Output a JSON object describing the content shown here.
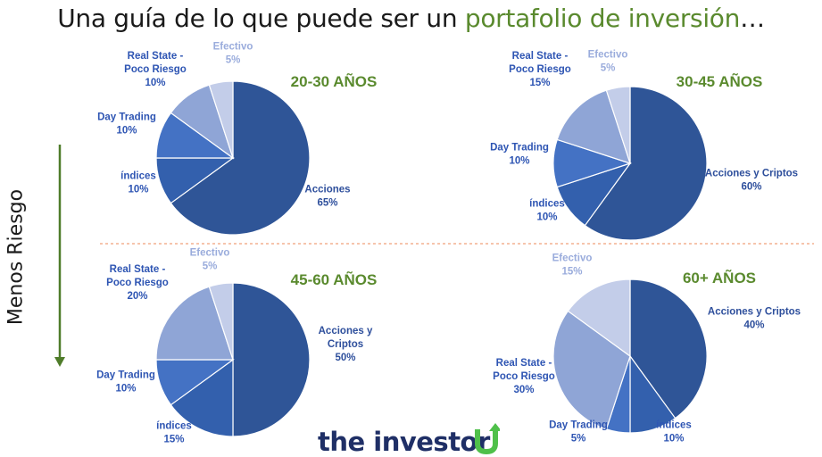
{
  "title": {
    "main": "Una guía de lo que puede ser un ",
    "accent": "portafolio de inversión",
    "suffix": "…"
  },
  "side_label": "Menos Riesgo",
  "brand": {
    "text": "the investor",
    "mark": "U-arrow-logo"
  },
  "colors": {
    "accent_green": "#5a8a2e",
    "label_blue": "#2e55b3",
    "divider": "#f0a07a"
  },
  "chart_data": [
    {
      "type": "pie",
      "title": "20-30 AÑOS",
      "slices": [
        {
          "label": "Acciones",
          "value": 65,
          "display": "65%"
        },
        {
          "label": "índices",
          "value": 10,
          "display": "10%"
        },
        {
          "label": "Day Trading",
          "value": 10,
          "display": "10%"
        },
        {
          "label": "Real State - Poco Riesgo",
          "value": 10,
          "display": "10%"
        },
        {
          "label": "Efectivo",
          "value": 5,
          "display": "5%"
        }
      ]
    },
    {
      "type": "pie",
      "title": "30-45 AÑOS",
      "slices": [
        {
          "label": "Acciones y Criptos",
          "value": 60,
          "display": "60%"
        },
        {
          "label": "índices",
          "value": 10,
          "display": "10%"
        },
        {
          "label": "Day Trading",
          "value": 10,
          "display": "10%"
        },
        {
          "label": "Real State - Poco Riesgo",
          "value": 15,
          "display": "15%"
        },
        {
          "label": "Efectivo",
          "value": 5,
          "display": "5%"
        }
      ]
    },
    {
      "type": "pie",
      "title": "45-60 AÑOS",
      "slices": [
        {
          "label": "Acciones y Criptos",
          "value": 50,
          "display": "50%"
        },
        {
          "label": "índices",
          "value": 15,
          "display": "15%"
        },
        {
          "label": "Day Trading",
          "value": 10,
          "display": "10%"
        },
        {
          "label": "Real State - Poco Riesgo",
          "value": 20,
          "display": "20%"
        },
        {
          "label": "Efectivo",
          "value": 5,
          "display": "5%"
        }
      ]
    },
    {
      "type": "pie",
      "title": "60+ AÑOS",
      "slices": [
        {
          "label": "Acciones y Criptos",
          "value": 40,
          "display": "40%"
        },
        {
          "label": "índices",
          "value": 10,
          "display": "10%"
        },
        {
          "label": "Day Trading",
          "value": 5,
          "display": "5%"
        },
        {
          "label": "Real State - Poco Riesgo",
          "value": 30,
          "display": "30%"
        },
        {
          "label": "Efectivo",
          "value": 15,
          "display": "15%"
        }
      ]
    }
  ]
}
